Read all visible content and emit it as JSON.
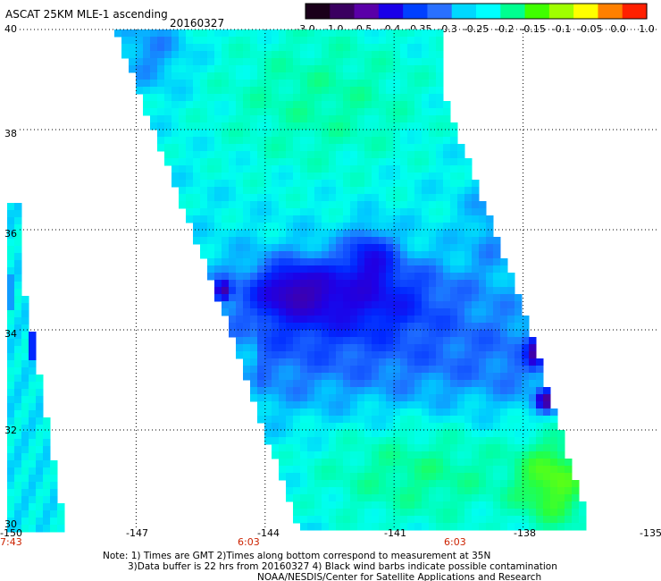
{
  "title": "ASCAT 25KM MLE-1 ascending",
  "date": "20160327",
  "colorbar": {
    "ticks": [
      "-3.0",
      "-1.0",
      "-0.5",
      "-0.4",
      "-0.35",
      "-0.3",
      "-0.25",
      "-0.2",
      "-0.15",
      "-0.1",
      "-0.05",
      "0.0",
      "1.0"
    ],
    "colors": [
      "#1a001a",
      "#3a0060",
      "#5a00a8",
      "#1a00e8",
      "#0040ff",
      "#2a70ff",
      "#00d8ff",
      "#00ffff",
      "#00ff90",
      "#40ff00",
      "#a0ff00",
      "#ffff00",
      "#ff8000",
      "#ff2000"
    ]
  },
  "map": {
    "lat_labels": [
      "40",
      "38",
      "36",
      "34",
      "32",
      "30"
    ],
    "lon_labels": [
      "-150",
      "-147",
      "-144",
      "-141",
      "-138",
      "-135"
    ],
    "time_labels": [
      {
        "text": "7:43",
        "lon": -150
      },
      {
        "text": "6:03",
        "lon": -144
      },
      {
        "text": "6:03",
        "lon": -139.7
      }
    ],
    "lat_range": [
      30,
      40
    ],
    "lon_range": [
      -150,
      -135
    ]
  },
  "notes": [
    "Note: 1) Times are GMT 2)Times along bottom correspond to measurement at 35N",
    "3)Data buffer is 22 hrs from 20160327 4) Black wind barbs indicate possible contamination",
    "NOAA/NESDIS/Center for Satellite Applications and Research"
  ]
}
